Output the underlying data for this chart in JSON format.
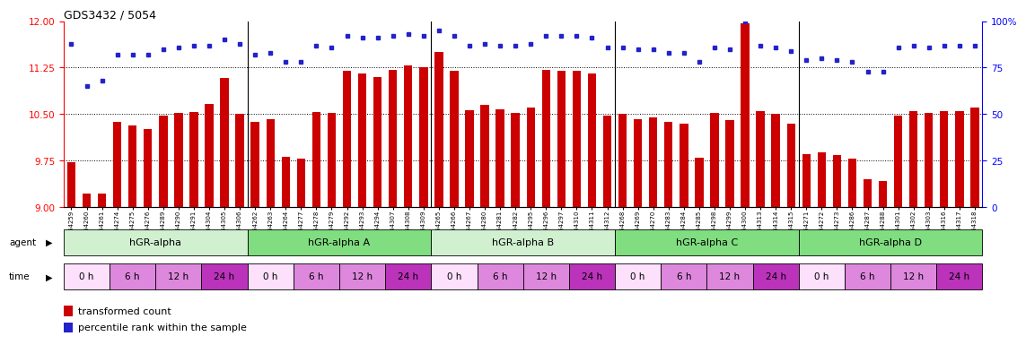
{
  "title": "GDS3432 / 5054",
  "sample_ids": [
    "GSM154259",
    "GSM154260",
    "GSM154261",
    "GSM154274",
    "GSM154275",
    "GSM154276",
    "GSM154289",
    "GSM154290",
    "GSM154291",
    "GSM154304",
    "GSM154305",
    "GSM154306",
    "GSM154262",
    "GSM154263",
    "GSM154264",
    "GSM154277",
    "GSM154278",
    "GSM154279",
    "GSM154292",
    "GSM154293",
    "GSM154294",
    "GSM154307",
    "GSM154308",
    "GSM154309",
    "GSM154265",
    "GSM154266",
    "GSM154267",
    "GSM154280",
    "GSM154281",
    "GSM154282",
    "GSM154295",
    "GSM154296",
    "GSM154297",
    "GSM154310",
    "GSM154311",
    "GSM154312",
    "GSM154268",
    "GSM154269",
    "GSM154270",
    "GSM154283",
    "GSM154284",
    "GSM154285",
    "GSM154298",
    "GSM154299",
    "GSM154300",
    "GSM154313",
    "GSM154314",
    "GSM154315",
    "GSM154271",
    "GSM154272",
    "GSM154273",
    "GSM154286",
    "GSM154287",
    "GSM154288",
    "GSM154301",
    "GSM154302",
    "GSM154303",
    "GSM154316",
    "GSM154317",
    "GSM154318"
  ],
  "red_values": [
    9.73,
    9.22,
    9.21,
    10.37,
    10.32,
    10.26,
    10.48,
    10.52,
    10.54,
    10.67,
    11.08,
    10.5,
    10.38,
    10.42,
    9.81,
    9.78,
    10.54,
    10.52,
    11.2,
    11.16,
    11.1,
    11.22,
    11.29,
    11.25,
    11.5,
    11.2,
    10.56,
    10.65,
    10.58,
    10.52,
    10.6,
    11.22,
    11.2,
    11.2,
    11.15,
    10.48,
    10.5,
    10.42,
    10.44,
    10.38,
    10.35,
    9.8,
    10.52,
    10.4,
    11.96,
    10.55,
    10.5,
    10.35,
    9.85,
    9.88,
    9.84,
    9.78,
    9.45,
    9.42,
    10.48,
    10.55,
    10.52,
    10.55,
    10.55,
    10.6
  ],
  "blue_values": [
    88,
    65,
    68,
    82,
    82,
    82,
    85,
    86,
    87,
    87,
    90,
    88,
    82,
    83,
    78,
    78,
    87,
    86,
    92,
    91,
    91,
    92,
    93,
    92,
    95,
    92,
    87,
    88,
    87,
    87,
    88,
    92,
    92,
    92,
    91,
    86,
    86,
    85,
    85,
    83,
    83,
    78,
    86,
    85,
    100,
    87,
    86,
    84,
    79,
    80,
    79,
    78,
    73,
    73,
    86,
    87,
    86,
    87,
    87,
    87
  ],
  "agents": [
    "hGR-alpha",
    "hGR-alpha A",
    "hGR-alpha B",
    "hGR-alpha C",
    "hGR-alpha D"
  ],
  "agent_spans": [
    12,
    12,
    12,
    12,
    12
  ],
  "agent_colors": [
    "#d0f0d0",
    "#80dd80",
    "#d0f0d0",
    "#80dd80",
    "#80dd80"
  ],
  "time_labels": [
    "0 h",
    "6 h",
    "12 h",
    "24 h"
  ],
  "time_colors": [
    "#fce0fc",
    "#dd88dd",
    "#dd88dd",
    "#bb33bb"
  ],
  "ylim_left": [
    9.0,
    12.0
  ],
  "ylim_right": [
    0,
    100
  ],
  "yticks_left": [
    9.0,
    9.75,
    10.5,
    11.25,
    12.0
  ],
  "yticks_right": [
    0,
    25,
    50,
    75,
    100
  ],
  "hgrid_vals": [
    9.75,
    10.5,
    11.25
  ],
  "bar_color": "#cc0000",
  "dot_color": "#2222cc",
  "legend_bar_label": "transformed count",
  "legend_dot_label": "percentile rank within the sample",
  "group_seps": [
    11.5,
    23.5,
    35.5,
    47.5
  ]
}
